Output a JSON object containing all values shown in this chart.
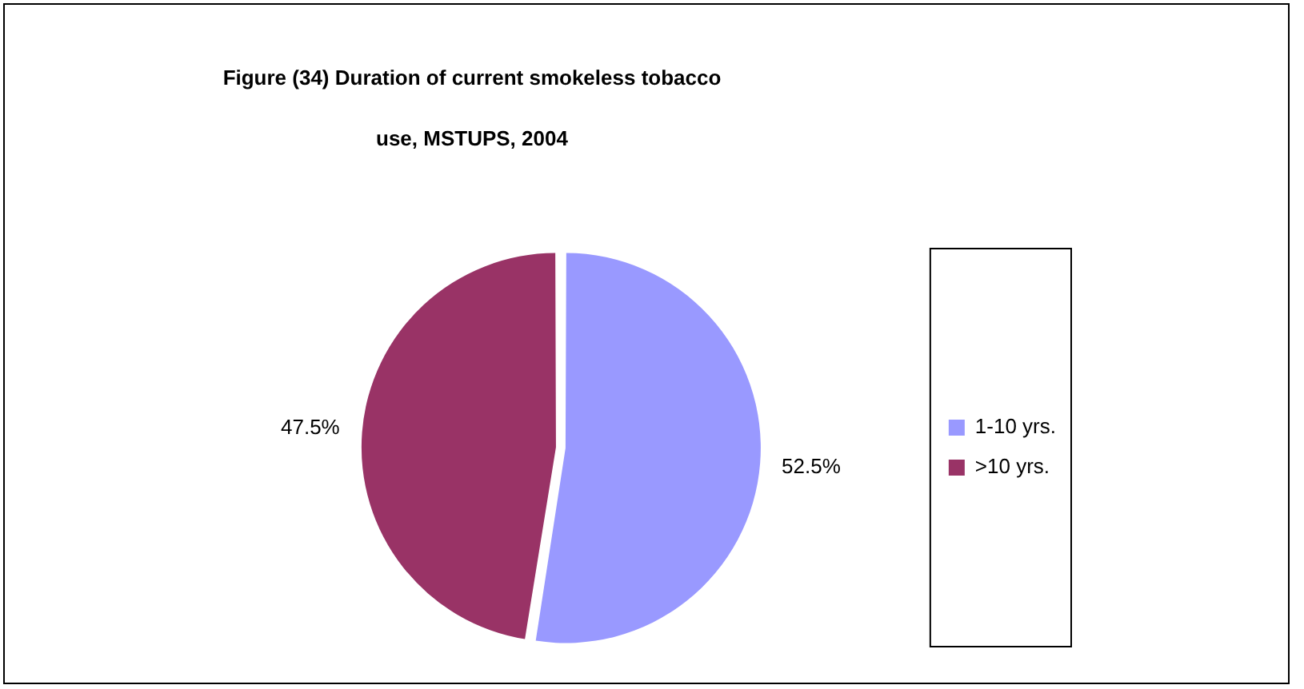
{
  "chart_data": {
    "type": "pie",
    "title": "Figure (34) Duration of current smokeless tobacco use, MSTUPS, 2004",
    "categories": [
      "1-10 yrs.",
      ">10 yrs."
    ],
    "values": [
      52.5,
      47.5
    ],
    "colors": [
      "#9999ff",
      "#993366"
    ],
    "value_labels": [
      "52.5%",
      "47.5%"
    ],
    "legend": "right"
  }
}
